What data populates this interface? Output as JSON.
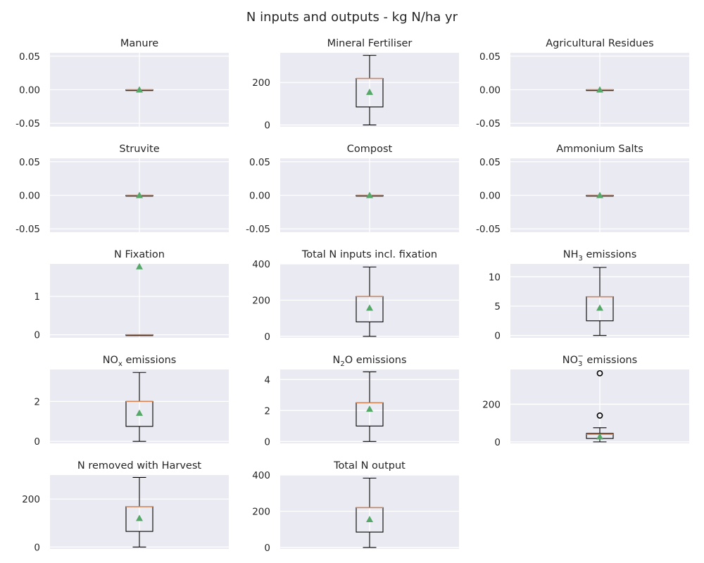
{
  "figure": {
    "title": "N inputs and outputs - kg N/ha yr",
    "colors": {
      "panel_bg": "#eaeaf2",
      "grid": "#ffffff",
      "box": "#000000",
      "median": "#dd8452",
      "mean_marker": "#55a868",
      "text": "#262626"
    }
  },
  "chart_data": [
    {
      "type": "box",
      "title": {
        "base": "Manure"
      },
      "ylim": [
        -0.055,
        0.055
      ],
      "yticks": [
        "0.05",
        "0.00",
        "-0.05"
      ],
      "ytick_values": [
        0.05,
        0.0,
        -0.05
      ],
      "grid": true,
      "box": {
        "whisker_low": 0,
        "q1": 0,
        "median": 0,
        "q3": 0,
        "whisker_high": 0,
        "mean": 0,
        "outliers": []
      }
    },
    {
      "type": "box",
      "title": {
        "base": "Mineral Fertiliser"
      },
      "ylim": [
        -8,
        340
      ],
      "yticks": [
        "200",
        "0"
      ],
      "ytick_values": [
        200,
        0
      ],
      "grid": true,
      "box": {
        "whisker_low": 0,
        "q1": 85,
        "median": 219,
        "q3": 219,
        "whisker_high": 328,
        "mean": 155,
        "outliers": []
      }
    },
    {
      "type": "box",
      "title": {
        "base": "Agricultural Residues"
      },
      "ylim": [
        -0.055,
        0.055
      ],
      "yticks": [
        "0.05",
        "0.00",
        "-0.05"
      ],
      "ytick_values": [
        0.05,
        0.0,
        -0.05
      ],
      "grid": true,
      "box": {
        "whisker_low": 0,
        "q1": 0,
        "median": 0,
        "q3": 0,
        "whisker_high": 0,
        "mean": 0,
        "outliers": []
      }
    },
    {
      "type": "box",
      "title": {
        "base": "Struvite"
      },
      "ylim": [
        -0.055,
        0.055
      ],
      "yticks": [
        "0.05",
        "0.00",
        "-0.05"
      ],
      "ytick_values": [
        0.05,
        0.0,
        -0.05
      ],
      "grid": true,
      "box": {
        "whisker_low": 0,
        "q1": 0,
        "median": 0,
        "q3": 0,
        "whisker_high": 0,
        "mean": 0,
        "outliers": []
      }
    },
    {
      "type": "box",
      "title": {
        "base": "Compost"
      },
      "ylim": [
        -0.055,
        0.055
      ],
      "yticks": [
        "0.05",
        "0.00",
        "-0.05"
      ],
      "ytick_values": [
        0.05,
        0.0,
        -0.05
      ],
      "grid": true,
      "box": {
        "whisker_low": 0,
        "q1": 0,
        "median": 0,
        "q3": 0,
        "whisker_high": 0,
        "mean": 0,
        "outliers": []
      }
    },
    {
      "type": "box",
      "title": {
        "base": "Ammonium Salts"
      },
      "ylim": [
        -0.055,
        0.055
      ],
      "yticks": [
        "0.05",
        "0.00",
        "-0.05"
      ],
      "ytick_values": [
        0.05,
        0.0,
        -0.05
      ],
      "grid": true,
      "box": {
        "whisker_low": 0,
        "q1": 0,
        "median": 0,
        "q3": 0,
        "whisker_high": 0,
        "mean": 0,
        "outliers": []
      }
    },
    {
      "type": "box",
      "title": {
        "base": "N Fixation"
      },
      "ylim": [
        -0.08,
        1.85
      ],
      "yticks": [
        "1",
        "0"
      ],
      "ytick_values": [
        1,
        0
      ],
      "grid": true,
      "box": {
        "whisker_low": 0,
        "q1": 0,
        "median": 0,
        "q3": 0,
        "whisker_high": 0,
        "mean": 1.78,
        "outliers": []
      }
    },
    {
      "type": "box",
      "title": {
        "base": "Total N inputs incl. fixation"
      },
      "ylim": [
        -8,
        400
      ],
      "yticks": [
        "400",
        "200",
        "0"
      ],
      "ytick_values": [
        400,
        200,
        0
      ],
      "grid": true,
      "box": {
        "whisker_low": 0,
        "q1": 80,
        "median": 220,
        "q3": 220,
        "whisker_high": 383,
        "mean": 157,
        "outliers": []
      }
    },
    {
      "type": "box",
      "title": {
        "base": "NH",
        "sub": "3",
        "rest": " emissions"
      },
      "ylim": [
        -0.4,
        12.2
      ],
      "yticks": [
        "10",
        "5",
        "0"
      ],
      "ytick_values": [
        10,
        5,
        0
      ],
      "grid": true,
      "box": {
        "whisker_low": 0,
        "q1": 2.5,
        "median": 6.6,
        "q3": 6.6,
        "whisker_high": 11.6,
        "mean": 4.7,
        "outliers": []
      }
    },
    {
      "type": "box",
      "title": {
        "base": "NO",
        "sub": "x",
        "rest": " emissions"
      },
      "ylim": [
        -0.1,
        3.6
      ],
      "yticks": [
        "2",
        "0"
      ],
      "ytick_values": [
        2,
        0
      ],
      "grid": true,
      "box": {
        "whisker_low": 0,
        "q1": 0.75,
        "median": 2.0,
        "q3": 2.0,
        "whisker_high": 3.45,
        "mean": 1.42,
        "outliers": []
      }
    },
    {
      "type": "box",
      "title": {
        "base": "N",
        "sub": "2",
        "rest": "O emissions"
      },
      "ylim": [
        -0.12,
        4.65
      ],
      "yticks": [
        "4",
        "2",
        "0"
      ],
      "ytick_values": [
        4,
        2,
        0
      ],
      "grid": true,
      "box": {
        "whisker_low": 0,
        "q1": 1.0,
        "median": 2.5,
        "q3": 2.5,
        "whisker_high": 4.5,
        "mean": 2.1,
        "outliers": []
      }
    },
    {
      "type": "box",
      "title": {
        "base": "NO",
        "sub": "3",
        "sup": "−",
        "rest": "  emissions"
      },
      "ylim": [
        -8,
        385
      ],
      "yticks": [
        "200",
        "0"
      ],
      "ytick_values": [
        200,
        0
      ],
      "grid": true,
      "box": {
        "whisker_low": 0,
        "q1": 18,
        "median": 40,
        "q3": 45,
        "whisker_high": 75,
        "mean": 28,
        "outliers": [
          140,
          365
        ]
      }
    },
    {
      "type": "box",
      "title": {
        "base": "N removed with Harvest"
      },
      "ylim": [
        -8,
        300
      ],
      "yticks": [
        "200",
        "0"
      ],
      "ytick_values": [
        200,
        0
      ],
      "grid": true,
      "box": {
        "whisker_low": 0,
        "q1": 65,
        "median": 168,
        "q3": 168,
        "whisker_high": 290,
        "mean": 120,
        "outliers": []
      }
    },
    {
      "type": "box",
      "title": {
        "base": "Total N output"
      },
      "ylim": [
        -8,
        400
      ],
      "yticks": [
        "400",
        "200",
        "0"
      ],
      "ytick_values": [
        400,
        200,
        0
      ],
      "grid": true,
      "box": {
        "whisker_low": 0,
        "q1": 85,
        "median": 220,
        "q3": 220,
        "whisker_high": 383,
        "mean": 155,
        "outliers": []
      }
    }
  ]
}
